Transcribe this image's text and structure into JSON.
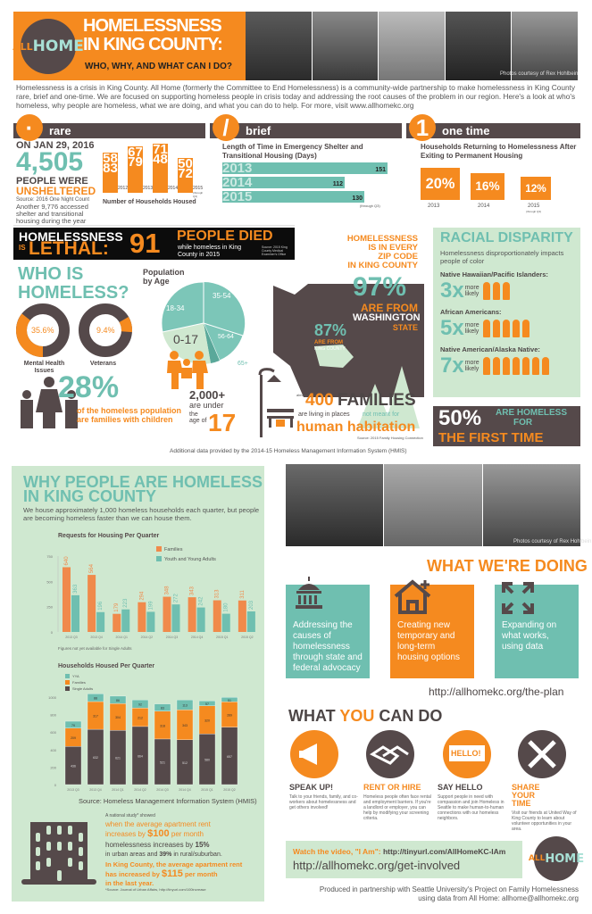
{
  "header": {
    "logo_all": "ALL",
    "logo_home": "HOME",
    "title_line1": "HOMELESSNESS",
    "title_line2": "IN KING COUNTY:",
    "subtitle": "WHO, WHY, AND WHAT CAN I DO?",
    "photo_credit": "Photos courtesy of Rex Hohlbein"
  },
  "intro": "Homelessness is a crisis in King County. All Home (formerly the Committee to End Homelessness) is a community-wide partnership to make homelessness in King County rare, brief and one-time. We are focused on supporting homeless people in crisis today and addressing the root causes of the problem in our region. Here's a look at who's homeless, why people are homeless, what we are doing, and what you can do to help. For more, visit www.allhomekc.org",
  "rare": {
    "label": "rare",
    "date": "ON JAN 29, 2016",
    "count": "4,505",
    "people_were": "PEOPLE WERE",
    "unsheltered": "UNSHELTERED",
    "source": "Source: 2016 One Night Count",
    "another": "Another 9,776 accessed shelter and transitional housing during the year",
    "chart_title": "Number of Households Housed",
    "bars": [
      {
        "year": "2012",
        "value": "5883"
      },
      {
        "year": "2013",
        "value": "6779"
      },
      {
        "year": "2014",
        "value": "7148"
      },
      {
        "year": "2015",
        "value": "5072",
        "note": "(through Q3)"
      }
    ]
  },
  "brief": {
    "label": "brief",
    "chart_title": "Length of Time in Emergency Shelter and Transitional Housing (Days)",
    "bars": [
      {
        "year": "2013",
        "value": 151
      },
      {
        "year": "2014",
        "value": 112
      },
      {
        "year": "2015",
        "value": 130
      }
    ],
    "note": "(through Q3)"
  },
  "onetime": {
    "label": "one time",
    "chart_title": "Households Returning to Homelessness After Exiting to Permanent Housing",
    "boxes": [
      {
        "value": "20%",
        "year": "2013"
      },
      {
        "value": "16%",
        "year": "2014"
      },
      {
        "value": "12%",
        "year": "2015",
        "note": "(through Q3)"
      }
    ]
  },
  "lethal": {
    "homelessness": "HOMELESSNESS",
    "is": "IS",
    "lethal": "LETHAL:",
    "number": "91",
    "died": "PEOPLE DIED",
    "detail": "while homeless in King County in 2015",
    "source": "Source: 2015 King County Medical Examiner's Office"
  },
  "who": {
    "title_line1": "WHO IS",
    "title_line2": "HOMELESS?",
    "mental_value": "35.6%",
    "mental_label": "Mental Health Issues",
    "veterans_value": "9.4%",
    "veterans_label": "Veterans",
    "pop_title": "Population by Age",
    "ages": [
      "18-34",
      "35-54",
      "56-64",
      "0-17",
      "65+"
    ],
    "families_pct": "28%",
    "families_text": "of the homeless population are families with children",
    "under17_count": "2,000+",
    "under17_text1": "are under",
    "under17_text2": "the age of",
    "under17_age": "17"
  },
  "zip": {
    "line1": "HOMELESSNESS",
    "line2": "IS IN EVERY",
    "line3": "ZIP CODE",
    "line4": "IN KING COUNTY",
    "wa_pct": "97%",
    "wa_text1": "ARE FROM",
    "wa_text2": "WASHINGTON",
    "wa_text3": "STATE",
    "kc_pct": "87%",
    "kc_text1": "ARE FROM",
    "kc_text2": "KING COUNTY"
  },
  "families400": {
    "almost": "almost",
    "count": "400",
    "families": "FAMILIES",
    "living": "are living in places",
    "not_meant": "not meant for",
    "habitation": "human habitation",
    "source": "Source: 2015 Family Housing Connection"
  },
  "racial": {
    "title": "RACIAL DISPARITY",
    "subtitle": "Homelessness disproportionately impacts people of color",
    "groups": [
      {
        "name": "Native Hawaiian/Pacific Islanders:",
        "mult": "3x",
        "count": 3
      },
      {
        "name": "African Americans:",
        "mult": "5x",
        "count": 5
      },
      {
        "name": "Native American/Alaska Native:",
        "mult": "7x",
        "count": 7
      }
    ],
    "more": "more",
    "likely": "likely"
  },
  "firsttime": {
    "pct": "50%",
    "text1": "ARE HOMELESS",
    "text2": "FOR",
    "text3": "THE FIRST TIME"
  },
  "hmis_note": "Additional data provided by the 2014-15 Homeless Management Information System (HMIS)",
  "why": {
    "title_line1": "WHY PEOPLE ARE HOMELESS",
    "title_line2": "IN KING COUNTY",
    "subtitle": "We house approximately 1,000 homeless households each quarter, but people are becoming homeless faster than we can house them.",
    "chart_note": "Figures not yet available for Single Adults",
    "chart_source": "Source: Homeless Management Information System (HMIS)",
    "study_intro": "A national study* showed",
    "study_l1": "when the average apartment rent",
    "study_l2a": "increases by",
    "study_l2b": "$100",
    "study_l2c": "per month",
    "study_l3a": "homelessness increases by",
    "study_l3b": "15%",
    "study_l4a": "in urban areas and",
    "study_l4b": "39%",
    "study_l4c": "in rural/suburban.",
    "kc_l1": "In King County, the average apartment rent",
    "kc_l2a": "has increased by",
    "kc_l2b": "$115",
    "kc_l2c": "per month",
    "kc_l3": "in the last year.",
    "study_source": "*Source: Journal of Urban Affairs, http://tinyurl.com/100increase"
  },
  "chart_data": [
    {
      "type": "bar",
      "title": "Requests for Housing Per Quarter",
      "categories": [
        "2013 Q3",
        "2013 Q4",
        "2014 Q1",
        "2014 Q2",
        "2014 Q3",
        "2014 Q4",
        "2015 Q1",
        "2015 Q2"
      ],
      "series": [
        {
          "name": "Families",
          "values": [
            640,
            564,
            179,
            294,
            348,
            343,
            313,
            311
          ],
          "color": "#f08a4b"
        },
        {
          "name": "Youth and Young Adults",
          "values": [
            363,
            196,
            223,
            199,
            272,
            242,
            180,
            203
          ],
          "color": "#6fbfb0"
        }
      ],
      "ylim": [
        0,
        750
      ],
      "yticks": [
        0,
        250,
        500,
        750
      ],
      "legend": "top-right"
    },
    {
      "type": "stacked-bar",
      "title": "Households Housed Per Quarter",
      "categories": [
        "2013 Q3",
        "2013 Q4",
        "2014 Q1",
        "2014 Q2",
        "2014 Q3",
        "2014 Q4",
        "2015 Q1",
        "2015 Q2"
      ],
      "series": [
        {
          "name": "Single Adults",
          "values": [
            436,
            632,
            621,
            664,
            521,
            512,
            580,
            657
          ],
          "color": "#55494a"
        },
        {
          "name": "Families",
          "values": [
            209,
            317,
            304,
            212,
            318,
            343,
            320,
            289
          ],
          "color": "#f58a1f"
        },
        {
          "name": "YYA",
          "values": [
            79,
            88,
            86,
            92,
            83,
            113,
            57,
            51
          ],
          "color": "#6fbfb0"
        }
      ],
      "ylim": [
        0,
        1000
      ],
      "yticks": [
        0,
        200,
        400,
        600,
        800,
        1000
      ],
      "legend": "top-left"
    }
  ],
  "doing": {
    "title": "WHAT WE'RE DOING",
    "boxes": [
      "Addressing the causes of homelessness through state and federal advocacy",
      "Creating new temporary and long-term housing options",
      "Expanding on what works, using data"
    ],
    "url": "http://allhomekc.org/the-plan",
    "photo_credit": "Photos courtesy of Rex Hohlbein"
  },
  "cando": {
    "title_a": "WHAT ",
    "title_b": "YOU",
    "title_c": " CAN DO",
    "items": [
      {
        "title": "SPEAK UP!",
        "text": "Talk to your friends, family, and co-workers about homelessness and get others involved!"
      },
      {
        "title": "RENT OR HIRE",
        "text": "Homeless people often face rental and employment barriers. If you're a landlord or employer, you can help by modifying your screening criteria."
      },
      {
        "title": "SAY HELLO",
        "text": "Support people in need with compassion and join Homeless in Seattle to make human-to-human connections with our homeless neighbors."
      },
      {
        "title": "SHARE YOUR TIME",
        "text": "Visit our friends at United Way of King County to learn about volunteer opportunities in your area."
      }
    ],
    "hello_bubble": "HELLO!",
    "video_label": "Watch the video, \"I Am\":",
    "video_url": "http://tinyurl.com/AllHomeKC-IAm",
    "involved_url": "http://allhomekc.org/get-involved"
  },
  "footer": {
    "line1": "Produced in partnership with Seattle University's Project on Family Homelessness",
    "line2": "using data from All Home: allhome@allhomekc.org"
  }
}
